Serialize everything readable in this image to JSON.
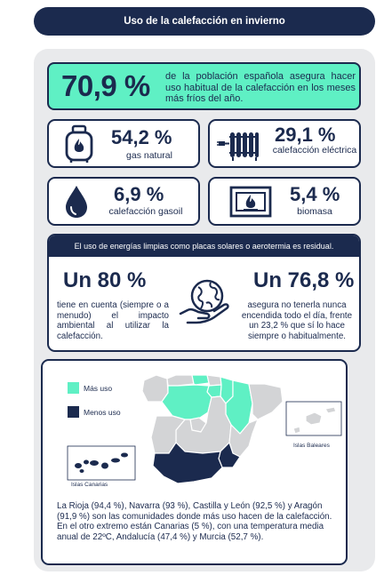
{
  "header": {
    "title": "Uso de la calefacción en invierno"
  },
  "highlight": {
    "value": "70,9 %",
    "text": "de la población española asegura hacer uso habitual de la calefacción en los meses más fríos del año."
  },
  "stats": [
    {
      "value": "54,2 %",
      "label": "gas natural",
      "icon": "gas-cylinder-icon"
    },
    {
      "value": "29,1 %",
      "label": "calefacción eléctrica",
      "icon": "electric-radiator-icon"
    },
    {
      "value": "6,9 %",
      "label": "calefacción gasoil",
      "icon": "oil-drop-icon"
    },
    {
      "value": "5,4 %",
      "label": "biomasa",
      "icon": "fireplace-icon"
    }
  ],
  "band": {
    "heading": "El uso de energías limpias como placas solares o aerotermia es residual.",
    "left": {
      "value": "Un 80 %",
      "text": "tiene en cuenta (siempre o a menudo) el impacto ambiental al utilizar la calefacción."
    },
    "right": {
      "value": "Un 76,8 %",
      "text": "asegura no tenerla nunca encendida todo el día, frente un 23,2 % que sí lo hace siempre o habitualmente."
    },
    "icon": "globe-in-hand-icon"
  },
  "map": {
    "legend": [
      {
        "label": "Más uso",
        "color": "#5ff0c4"
      },
      {
        "label": "Menos uso",
        "color": "#1b2a4e"
      }
    ],
    "neutral_color": "#d3d4d6",
    "canarias_label": "Islas Canarias",
    "baleares_label": "Islas Baleares",
    "note": "La Rioja (94,4 %), Navarra (93 %), Castilla y León (92,5 %) y Aragón (91,9 %) son las comunidades donde más uso hacen de la calefacción. En el otro extremo están Canarias (5 %), con una temperatura media anual de 22ºC, Andalucía (47,4 %) y Murcia (52,7 %)."
  },
  "colors": {
    "navy": "#1b2a4e",
    "mint": "#5ff0c4",
    "panel": "#e9eaec"
  }
}
